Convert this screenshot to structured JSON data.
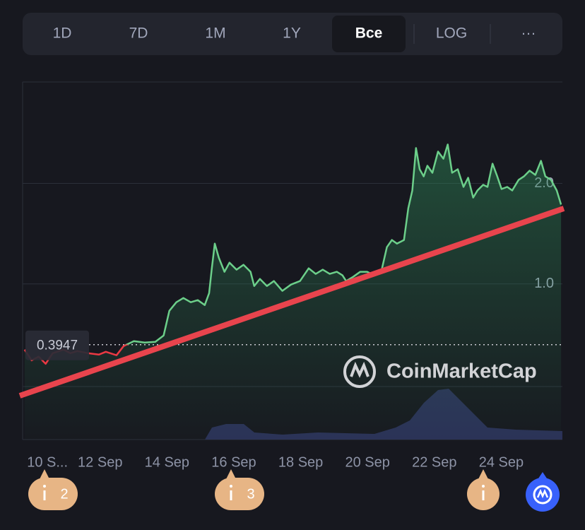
{
  "toolbar": {
    "buttons": [
      "1D",
      "7D",
      "1M",
      "1Y",
      "Все",
      "LOG",
      "···"
    ],
    "selected": 4
  },
  "watermark": "CoinMarketCap",
  "event_counts": [
    2,
    3
  ],
  "chart_data": {
    "type": "line",
    "x": [
      9.74,
      9.95,
      10.16,
      10.37,
      10.58,
      10.9,
      11.11,
      11.32,
      11.64,
      11.96,
      12.17,
      12.49,
      12.7,
      13.01,
      13.33,
      13.65,
      13.9,
      14.07,
      14.28,
      14.49,
      14.71,
      14.92,
      15.13,
      15.26,
      15.34,
      15.43,
      15.55,
      15.72,
      15.87,
      16.08,
      16.29,
      16.5,
      16.61,
      16.78,
      16.99,
      17.2,
      17.45,
      17.71,
      17.98,
      18.24,
      18.45,
      18.66,
      18.87,
      19.08,
      19.25,
      19.36,
      19.57,
      19.78,
      19.99,
      20.2,
      20.41,
      20.58,
      20.73,
      20.88,
      21.09,
      21.22,
      21.34,
      21.45,
      21.56,
      21.68,
      21.79,
      21.94,
      22.11,
      22.27,
      22.4,
      22.53,
      22.7,
      22.87,
      23.01,
      23.16,
      23.29,
      23.46,
      23.59,
      23.74,
      23.88,
      24.01,
      24.18,
      24.33,
      24.52,
      24.68,
      24.85,
      25.02,
      25.19,
      25.32,
      25.49,
      25.66,
      25.79
    ],
    "values": [
      0.345,
      0.239,
      0.275,
      0.204,
      0.31,
      0.345,
      0.31,
      0.331,
      0.31,
      0.296,
      0.324,
      0.289,
      0.38,
      0.43,
      0.415,
      0.423,
      0.486,
      0.732,
      0.817,
      0.859,
      0.817,
      0.838,
      0.789,
      0.908,
      1.155,
      1.401,
      1.261,
      1.12,
      1.211,
      1.141,
      1.19,
      1.12,
      0.979,
      1.049,
      0.979,
      1.028,
      0.93,
      0.993,
      1.028,
      1.155,
      1.099,
      1.141,
      1.099,
      1.12,
      1.085,
      1.028,
      1.07,
      1.12,
      1.12,
      1.085,
      1.12,
      1.366,
      1.437,
      1.401,
      1.437,
      1.754,
      1.93,
      2.352,
      2.141,
      2.07,
      2.176,
      2.106,
      2.317,
      2.246,
      2.387,
      2.106,
      2.141,
      1.965,
      2.056,
      1.859,
      1.93,
      1.986,
      1.965,
      2.197,
      2.07,
      1.944,
      1.965,
      1.93,
      2.035,
      2.07,
      2.127,
      2.085,
      2.225,
      2.07,
      2.035,
      1.93,
      1.789
    ],
    "baseline": 0.3947,
    "color": "#6ccf8a",
    "below_color": "#ea3943",
    "xlim": [
      9.68,
      25.83
    ],
    "ylim": [
      -0.55,
      3.01
    ],
    "xticks": [
      {
        "value": 10,
        "label": "10 S..."
      },
      {
        "value": 12,
        "label": "12 Sep"
      },
      {
        "value": 14,
        "label": "14 Sep"
      },
      {
        "value": 16,
        "label": "16 Sep"
      },
      {
        "value": 18,
        "label": "18 Sep"
      },
      {
        "value": 20,
        "label": "20 Sep"
      },
      {
        "value": 22,
        "label": "22 Sep"
      },
      {
        "value": 24,
        "label": "24 Sep"
      }
    ],
    "yticks": [
      {
        "value": 1,
        "label": "1.0"
      },
      {
        "value": 2,
        "label": "2.0"
      }
    ],
    "grid": true
  }
}
